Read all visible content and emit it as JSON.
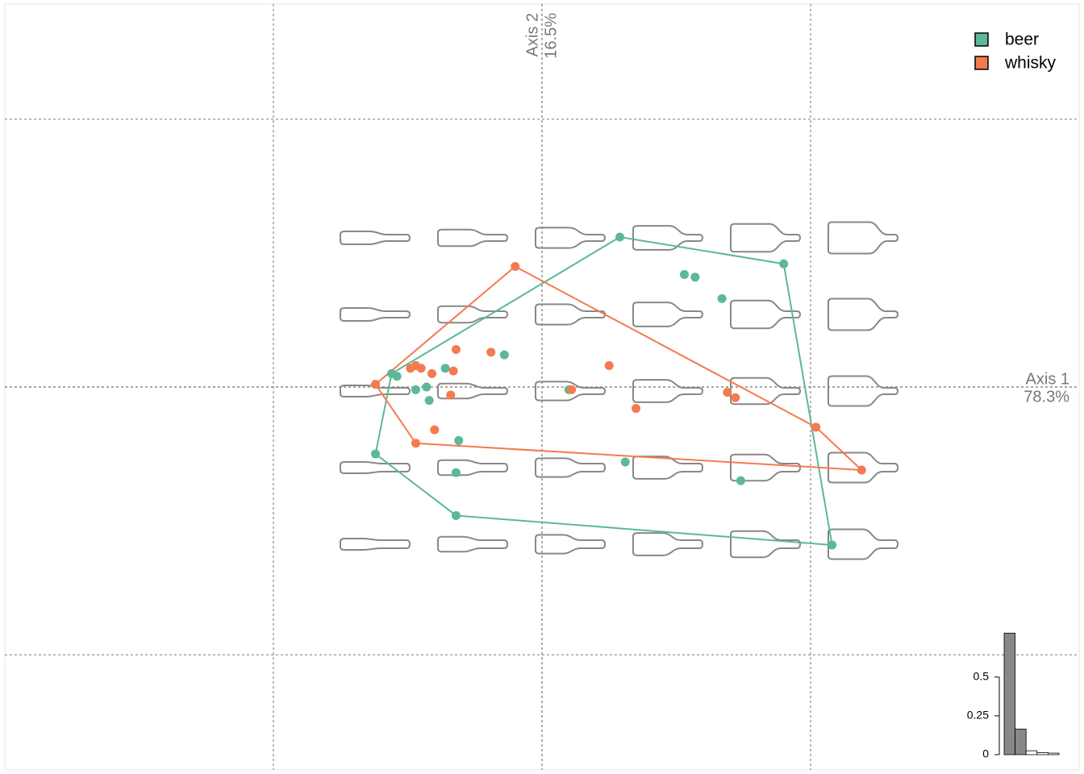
{
  "chart_data": {
    "type": "scatter",
    "xlabel": "Axis 1",
    "xlabel_pct": "78.3%",
    "ylabel": "Axis 2",
    "ylabel_pct": "16.5%",
    "xlim": [
      -0.2,
      0.2
    ],
    "ylim": [
      -0.143,
      0.143
    ],
    "xticks": [
      -0.1,
      0,
      0.1
    ],
    "yticks": [
      -0.1,
      0,
      0.1
    ],
    "grid": true,
    "legend": "top-right",
    "hull": true,
    "series": [
      {
        "name": "beer",
        "color": "#5cb896",
        "x": [
          0.029,
          0.09,
          0.053,
          0.057,
          0.067,
          -0.014,
          -0.036,
          -0.056,
          -0.054,
          -0.047,
          -0.043,
          -0.042,
          0.01,
          -0.031,
          -0.062,
          -0.032,
          0.031,
          0.074,
          -0.032,
          0.108
        ],
        "values": [
          0.056,
          0.046,
          0.042,
          0.041,
          0.033,
          0.012,
          0.007,
          0.005,
          0.004,
          -0.001,
          0.0,
          -0.005,
          -0.001,
          -0.02,
          -0.025,
          -0.032,
          -0.028,
          -0.035,
          -0.048,
          -0.059
        ]
      },
      {
        "name": "whisky",
        "color": "#f47a50",
        "x": [
          -0.01,
          -0.032,
          -0.019,
          0.025,
          -0.047,
          -0.049,
          -0.045,
          -0.041,
          -0.033,
          -0.062,
          -0.034,
          0.011,
          0.069,
          0.072,
          0.035,
          -0.04,
          0.102,
          -0.047,
          0.119
        ],
        "values": [
          0.045,
          0.014,
          0.013,
          0.008,
          0.008,
          0.007,
          0.007,
          0.005,
          0.006,
          0.001,
          -0.003,
          -0.001,
          -0.002,
          -0.004,
          -0.008,
          -0.016,
          -0.015,
          -0.021,
          -0.031
        ]
      }
    ],
    "eigen": {
      "type": "bar",
      "values": [
        0.783,
        0.165,
        0.025,
        0.013,
        0.01
      ],
      "colors": [
        "#888888",
        "#888888",
        "#ffffff",
        "#ffffff",
        "#ffffff"
      ],
      "ylim": [
        0,
        0.8
      ],
      "yticks": [
        0,
        0.25,
        0.5
      ]
    }
  }
}
